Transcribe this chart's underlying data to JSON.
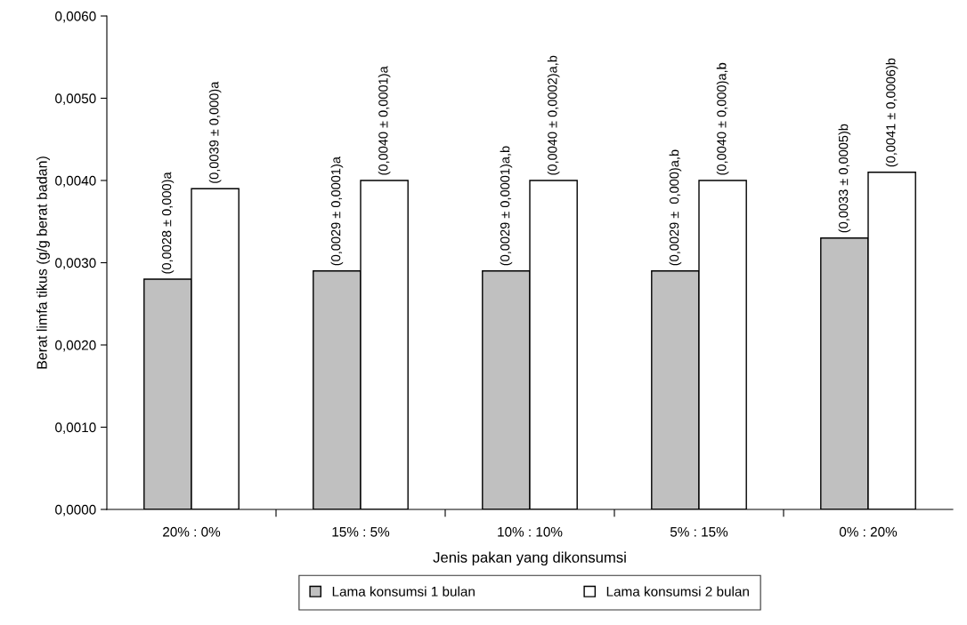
{
  "chart_data": {
    "type": "bar",
    "xlabel": "Jenis pakan yang dikonsumsi",
    "ylabel": "Berat limfa tikus (g/g berat badan)",
    "categories": [
      "20% : 0%",
      "15% : 5%",
      "10% : 10%",
      "5% : 15%",
      "0% : 20%"
    ],
    "series": [
      {
        "name": "Lama konsumsi 1 bulan",
        "color": "#c0c0c0",
        "values": [
          0.0028,
          0.0029,
          0.0029,
          0.0029,
          0.0033
        ],
        "value_labels": [
          "(0,0028 ± 0,000)a",
          "(0,0029 ± 0,0001)a",
          "(0,0029 ± 0,0001)a,b",
          "(0,0029 ±  0,000)a,b",
          "(0,0033 ± 0,0005)b"
        ]
      },
      {
        "name": "Lama konsumsi 2 bulan",
        "color": "#ffffff",
        "values": [
          0.0039,
          0.004,
          0.004,
          0.004,
          0.0041
        ],
        "value_labels": [
          "(0,0039 ± 0,000)a",
          "(0,0040 ± 0,0001)a",
          "(0,0040 ± 0,0002)a,b",
          "(0,0040 ± 0,000)a,b",
          "(0,0041 ± 0,0006)b"
        ]
      }
    ],
    "ylim": [
      0,
      0.006
    ],
    "yticks": [
      {
        "value": 0,
        "label": "0,0000"
      },
      {
        "value": 0.001,
        "label": "0,0010"
      },
      {
        "value": 0.002,
        "label": "0,0020"
      },
      {
        "value": 0.003,
        "label": "0,0030"
      },
      {
        "value": 0.004,
        "label": "0,0040"
      },
      {
        "value": 0.005,
        "label": "0,0050"
      },
      {
        "value": 0.006,
        "label": "0,0060"
      }
    ],
    "grid": false,
    "legend": "bottom"
  }
}
